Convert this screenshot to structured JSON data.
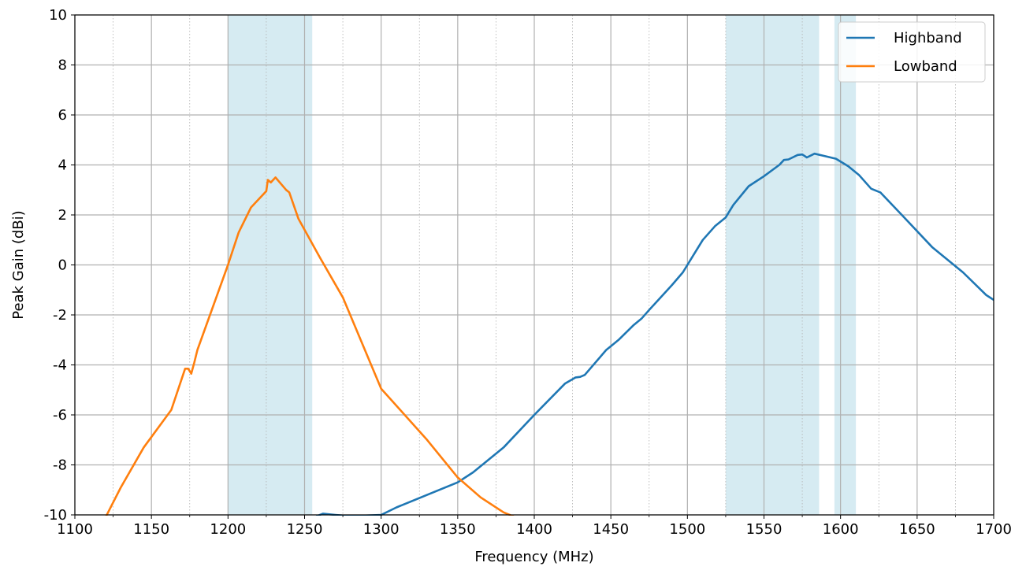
{
  "chart_data": {
    "type": "line",
    "title": "",
    "xlabel": "Frequency (MHz)",
    "ylabel": "Peak Gain (dBi)",
    "xlim": [
      1100,
      1700
    ],
    "ylim": [
      -10,
      10
    ],
    "x_ticks": [
      1100,
      1150,
      1200,
      1250,
      1300,
      1350,
      1400,
      1450,
      1500,
      1550,
      1600,
      1650,
      1700
    ],
    "x_tick_labels": [
      "1100",
      "1150",
      "1200",
      "1250",
      "1300",
      "1350",
      "1400",
      "1450",
      "1500",
      "1550",
      "1600",
      "1650",
      "1700"
    ],
    "y_ticks": [
      -10,
      -8,
      -6,
      -4,
      -2,
      0,
      2,
      4,
      6,
      8,
      10
    ],
    "y_tick_labels": [
      "-10",
      "-8",
      "-6",
      "-4",
      "-2",
      "0",
      "2",
      "4",
      "6",
      "8",
      "10"
    ],
    "x_minor_ticks": [
      1125,
      1175,
      1225,
      1275,
      1325,
      1375,
      1425,
      1475,
      1525,
      1575,
      1625,
      1675
    ],
    "grid": true,
    "legend_position": "top-right",
    "shaded_bands": [
      {
        "x0": 1200,
        "x1": 1255,
        "color": "#add8e6"
      },
      {
        "x0": 1525,
        "x1": 1586,
        "color": "#add8e6"
      },
      {
        "x0": 1596,
        "x1": 1610,
        "color": "#add8e6"
      }
    ],
    "series": [
      {
        "name": "Highband",
        "color": "#1f77b4",
        "points": [
          [
            1258,
            -10.05
          ],
          [
            1262,
            -9.95
          ],
          [
            1270,
            -10.0
          ],
          [
            1280,
            -10.05
          ],
          [
            1300,
            -10.0
          ],
          [
            1310,
            -9.7
          ],
          [
            1330,
            -9.2
          ],
          [
            1350,
            -8.7
          ],
          [
            1360,
            -8.3
          ],
          [
            1380,
            -7.3
          ],
          [
            1400,
            -6.0
          ],
          [
            1420,
            -4.75
          ],
          [
            1427,
            -4.5
          ],
          [
            1430,
            -4.48
          ],
          [
            1433,
            -4.4
          ],
          [
            1447,
            -3.4
          ],
          [
            1450,
            -3.25
          ],
          [
            1455,
            -3.0
          ],
          [
            1465,
            -2.4
          ],
          [
            1470,
            -2.15
          ],
          [
            1475,
            -1.8
          ],
          [
            1490,
            -0.8
          ],
          [
            1497,
            -0.3
          ],
          [
            1505,
            0.5
          ],
          [
            1510,
            1.0
          ],
          [
            1518,
            1.55
          ],
          [
            1525,
            1.9
          ],
          [
            1530,
            2.4
          ],
          [
            1540,
            3.15
          ],
          [
            1550,
            3.55
          ],
          [
            1560,
            4.0
          ],
          [
            1563,
            4.2
          ],
          [
            1566,
            4.22
          ],
          [
            1572,
            4.4
          ],
          [
            1575,
            4.42
          ],
          [
            1578,
            4.3
          ],
          [
            1583,
            4.45
          ],
          [
            1590,
            4.35
          ],
          [
            1597,
            4.25
          ],
          [
            1605,
            3.95
          ],
          [
            1612,
            3.6
          ],
          [
            1620,
            3.05
          ],
          [
            1626,
            2.9
          ],
          [
            1640,
            2.0
          ],
          [
            1660,
            0.7
          ],
          [
            1680,
            -0.3
          ],
          [
            1695,
            -1.2
          ],
          [
            1700,
            -1.4
          ]
        ]
      },
      {
        "name": "Lowband",
        "color": "#ff7f0e",
        "points": [
          [
            1120,
            -10.1
          ],
          [
            1130,
            -8.9
          ],
          [
            1145,
            -7.3
          ],
          [
            1163,
            -5.8
          ],
          [
            1172,
            -4.15
          ],
          [
            1174,
            -4.15
          ],
          [
            1176,
            -4.35
          ],
          [
            1178,
            -3.9
          ],
          [
            1180,
            -3.4
          ],
          [
            1190,
            -1.7
          ],
          [
            1200,
            0.0
          ],
          [
            1207,
            1.3
          ],
          [
            1215,
            2.3
          ],
          [
            1225,
            2.95
          ],
          [
            1226,
            3.4
          ],
          [
            1228,
            3.3
          ],
          [
            1231,
            3.5
          ],
          [
            1238,
            3.0
          ],
          [
            1240,
            2.9
          ],
          [
            1246,
            1.85
          ],
          [
            1260,
            0.3
          ],
          [
            1275,
            -1.3
          ],
          [
            1300,
            -4.95
          ],
          [
            1330,
            -7.0
          ],
          [
            1350,
            -8.5
          ],
          [
            1365,
            -9.3
          ],
          [
            1380,
            -9.9
          ],
          [
            1388,
            -10.1
          ]
        ]
      }
    ]
  }
}
